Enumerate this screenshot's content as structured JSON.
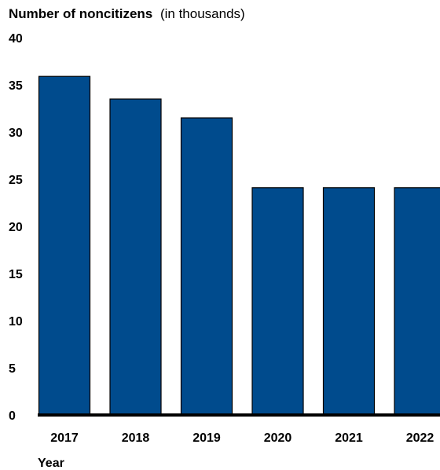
{
  "chart_data": {
    "type": "bar",
    "title": "Number of noncitizens",
    "title_suffix": "(in thousands)",
    "xlabel": "Year",
    "ylabel": "",
    "categories": [
      "2017",
      "2018",
      "2019",
      "2020",
      "2021",
      "2022"
    ],
    "values": [
      35.9,
      33.5,
      31.5,
      24.1,
      24.1,
      24.1
    ],
    "ylim": [
      0,
      40
    ],
    "yticks": [
      "0",
      "5",
      "10",
      "15",
      "20",
      "25",
      "30",
      "35",
      "40"
    ],
    "grid": false,
    "bar_color": "#004b8d",
    "baseline_color": "#000000"
  }
}
